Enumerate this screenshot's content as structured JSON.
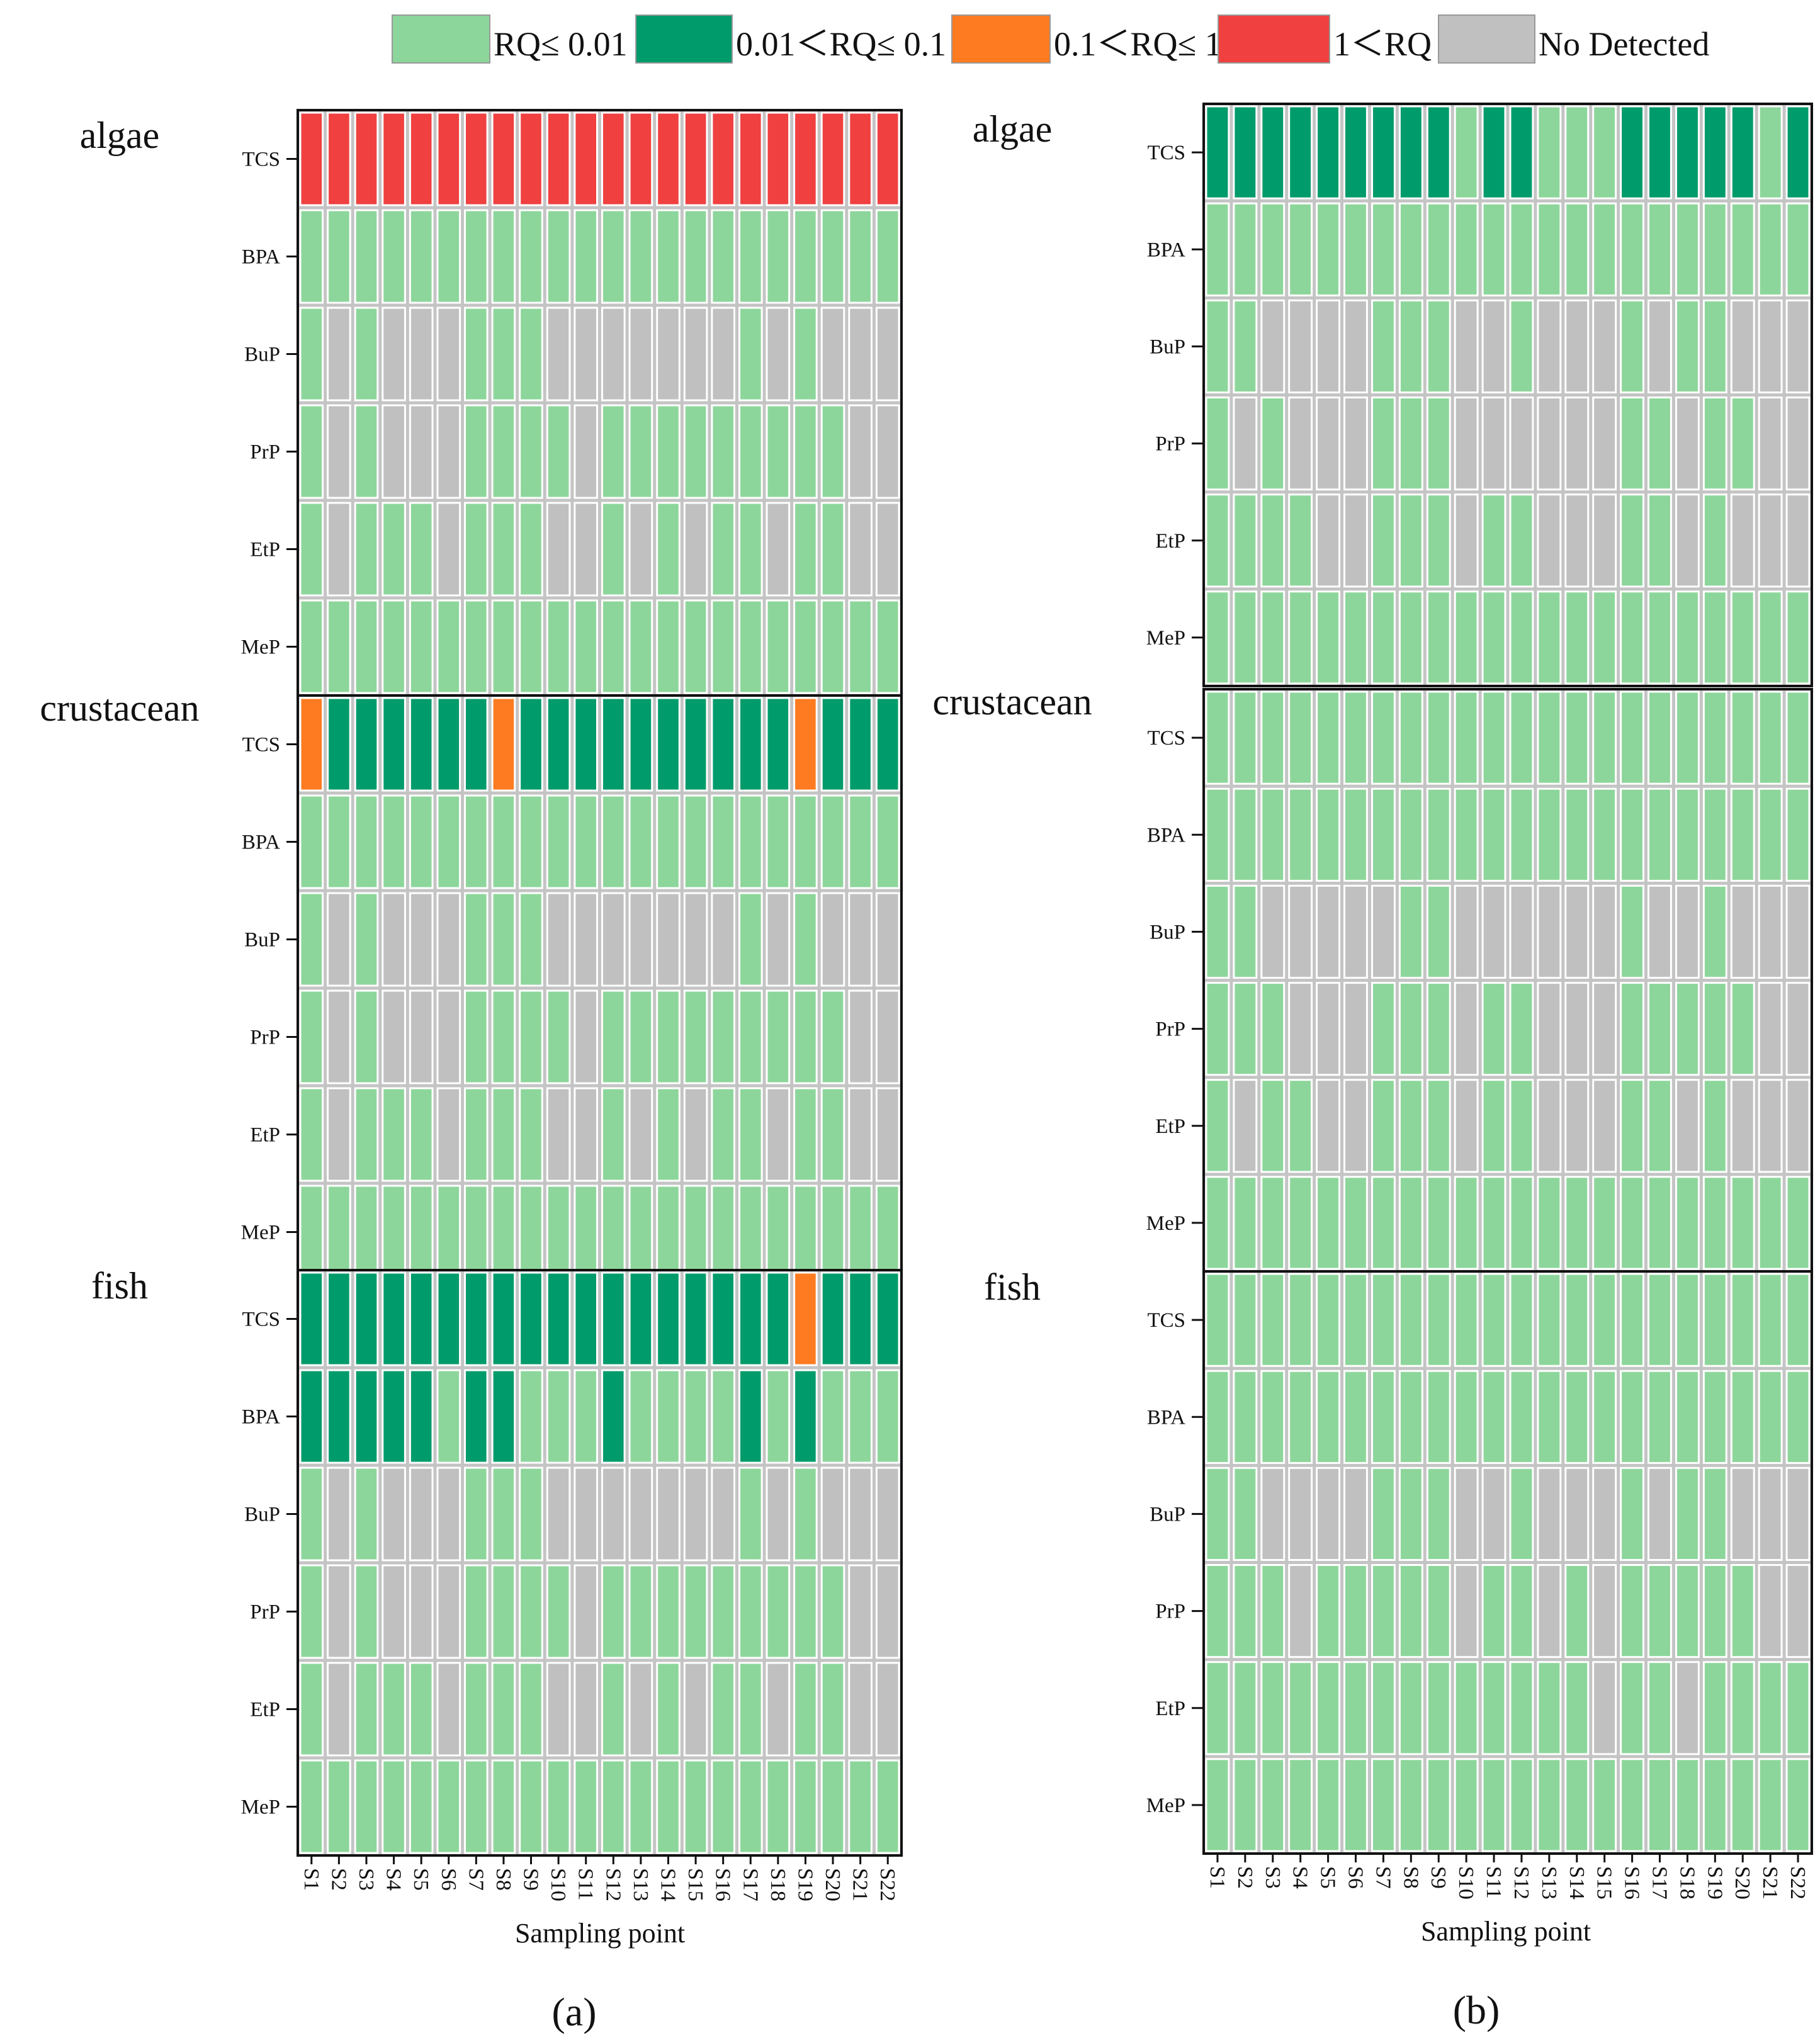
{
  "chart_data": {
    "type": "heatmap",
    "legend": {
      "placement": "top",
      "items": [
        {
          "code": "L",
          "label": "RQ≤ 0.01",
          "color": "#8dd69b"
        },
        {
          "code": "D",
          "label": "0.01＜RQ≤ 0.1",
          "color": "#009b6b"
        },
        {
          "code": "O",
          "label": "0.1＜RQ≤ 1",
          "color": "#ff7b22"
        },
        {
          "code": "R",
          "label": "1＜RQ",
          "color": "#f04040"
        },
        {
          "code": "N",
          "label": "No Detected",
          "color": "#c0c0c0"
        }
      ]
    },
    "xlabel": "Sampling point",
    "x_ticks": [
      "S1",
      "S2",
      "S3",
      "S4",
      "S5",
      "S6",
      "S7",
      "S8",
      "S9",
      "S10",
      "S11",
      "S12",
      "S13",
      "S14",
      "S15",
      "S16",
      "S17",
      "S18",
      "S19",
      "S20",
      "S21",
      "S22"
    ],
    "y_ticks": [
      "TCS",
      "BPA",
      "BuP",
      "PrP",
      "EtP",
      "MeP"
    ],
    "panels": [
      {
        "label": "(a)",
        "organisms": [
          {
            "name": "algae",
            "rows": {
              "TCS": "RRRRRRRRRRRRRRRRRRRRRR",
              "BPA": "LLLLLLLLLLLLLLLLLLLLLL",
              "BuP": "LNLNNNLLLNNNNNNNLNLNNN",
              "PrP": "LNLNNNLLLLNLLLLLLLLLNN",
              "EtP": "LNLLLNLLLNNLNLNLLNLLNN",
              "MeP": "LLLLLLLLLLLLLLLLLLLLLL"
            }
          },
          {
            "name": "crustacean",
            "rows": {
              "TCS": "ODDDDDDODDDDDDDDDDODDD",
              "BPA": "LLLLLLLLLLLLLLLLLLLLLL",
              "BuP": "LNLNNNLLLNNNNNNNLNLNNN",
              "PrP": "LNLNNNLLLLNLLLLLLLLLNN",
              "EtP": "LNLLLNLLLNNLNLNLLNLLNN",
              "MeP": "LLLLLLLLLLLLLLLLLLLLLL"
            }
          },
          {
            "name": "fish",
            "rows": {
              "TCS": "DDDDDDDDDDDDDDDDDDODDD",
              "BPA": "DDDDDLDDLLLDLLLLDLDLLL",
              "BuP": "LNLNNNLLLNNNNNNNLNLNNN",
              "PrP": "LNLNNNLLLLNLLLLLLLLLNN",
              "EtP": "LNLLLNLLLNNLNLNLLNLLNN",
              "MeP": "LLLLLLLLLLLLLLLLLLLLLL"
            }
          }
        ]
      },
      {
        "label": "(b)",
        "organisms": [
          {
            "name": "algae",
            "rows": {
              "TCS": "DDDDDDDDDLDDLLLDDDDDLD",
              "BPA": "LLLLLLLLLLLLLLLLLLLLLL",
              "BuP": "LLNNNNLLLNNLNNNLNLLNNN",
              "PrP": "LNLNNNLLLNNNNNNLLNLLNN",
              "EtP": "LLLLNNLLLNLLNNNLLNLNNN",
              "MeP": "LLLLLLLLLLLLLLLLLLLLLL"
            }
          },
          {
            "name": "crustacean",
            "rows": {
              "TCS": "LLLLLLLLLLLLLLLLLLLLLL",
              "BPA": "LLLLLLLLLLLLLLLLLLLLLL",
              "BuP": "LLNNNNNLLNNNNNNLNNLNNN",
              "PrP": "LLLNNNLLLNLLNNNLLLLLNN",
              "EtP": "LNLLNNLLLNLLNNNLLNLNNN",
              "MeP": "LLLLLLLLLLLLLLLLLLLLLL"
            }
          },
          {
            "name": "fish",
            "rows": {
              "TCS": "LLLLLLLLLLLLLLLLLLLLLL",
              "BPA": "LLLLLLLLLLLLLLLLLLLLLL",
              "BuP": "LLNNNNLLLNNLNNNLNLLNNN",
              "PrP": "LLLNLLLLLNLLNLNLLLLLNN",
              "EtP": "LLLLLLLLLLLLLLNLLNLLLL",
              "MeP": "LLLLLLLLLLLLLLLLLLLLLL"
            }
          }
        ]
      }
    ]
  }
}
